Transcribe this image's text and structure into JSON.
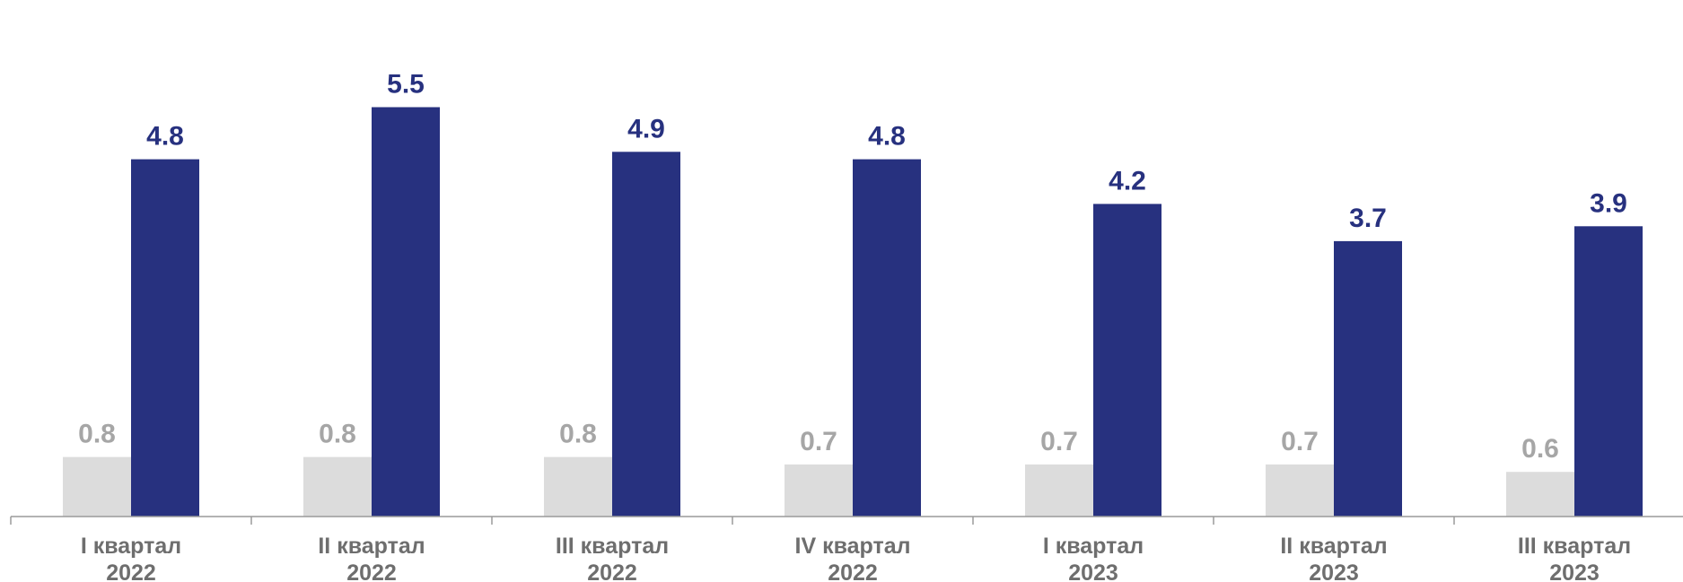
{
  "chart_data": {
    "type": "bar",
    "categories": [
      [
        "I квартал",
        "2022"
      ],
      [
        "II квартал",
        "2022"
      ],
      [
        "III квартал",
        "2022"
      ],
      [
        "IV квартал",
        "2022"
      ],
      [
        "I квартал",
        "2023"
      ],
      [
        "II квартал",
        "2023"
      ],
      [
        "III квартал",
        "2023"
      ]
    ],
    "series": [
      {
        "values": [
          0.8,
          0.8,
          0.8,
          0.7,
          0.7,
          0.7,
          0.6
        ],
        "color": "#dcdcdc",
        "label_color": "#a6a6a6"
      },
      {
        "values": [
          4.8,
          5.5,
          4.9,
          4.8,
          4.2,
          3.7,
          3.9
        ],
        "color": "#27317f",
        "label_color": "#27317f"
      }
    ],
    "ylim": [
      0,
      6
    ],
    "grid": false,
    "legend": "none",
    "axis_color": "#9a9a9a"
  }
}
